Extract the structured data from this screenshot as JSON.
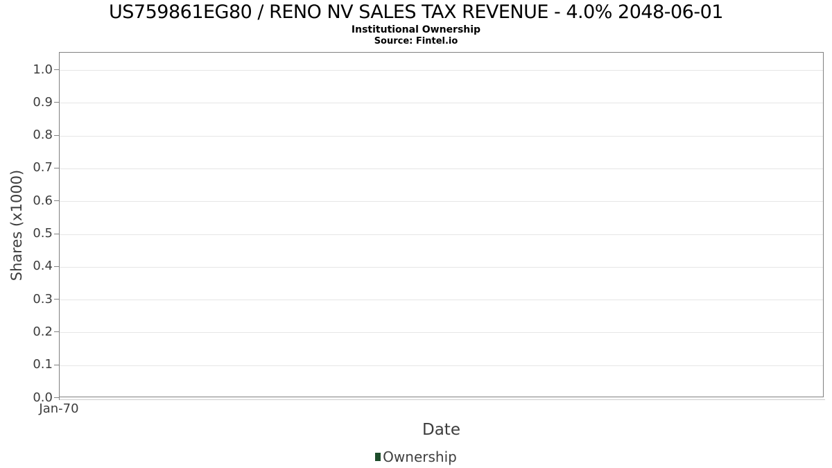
{
  "header": {
    "title": "US759861EG80 / RENO NV SALES TAX REVENUE - 4.0% 2048-06-01",
    "subtitle": "Institutional Ownership",
    "source": "Source: Fintel.io"
  },
  "chart_data": {
    "type": "line",
    "title": "US759861EG80 / RENO NV SALES TAX REVENUE - 4.0% 2048-06-01",
    "subtitle": "Institutional Ownership",
    "source": "Source: Fintel.io",
    "xlabel": "Date",
    "ylabel": "Shares (x1000)",
    "x_tick_labels": [
      "Jan-70"
    ],
    "y_tick_labels": [
      "0.0",
      "0.1",
      "0.2",
      "0.3",
      "0.4",
      "0.5",
      "0.6",
      "0.7",
      "0.8",
      "0.9",
      "1.0"
    ],
    "ylim": [
      0.0,
      1.05
    ],
    "grid": true,
    "legend_position": "bottom",
    "series": [
      {
        "name": "Ownership",
        "color": "#1e4d2b",
        "x": [],
        "values": []
      }
    ]
  },
  "legend": {
    "items": [
      {
        "label": "Ownership",
        "color": "#1e4d2b"
      }
    ]
  },
  "colors": {
    "plot_border": "#808080",
    "gridline": "#e6e6e6",
    "axis_light_line": "#cccccc",
    "axis_text": "#3c3c3c",
    "title_text": "#000000",
    "legend_marker": "#1e4d2b"
  }
}
